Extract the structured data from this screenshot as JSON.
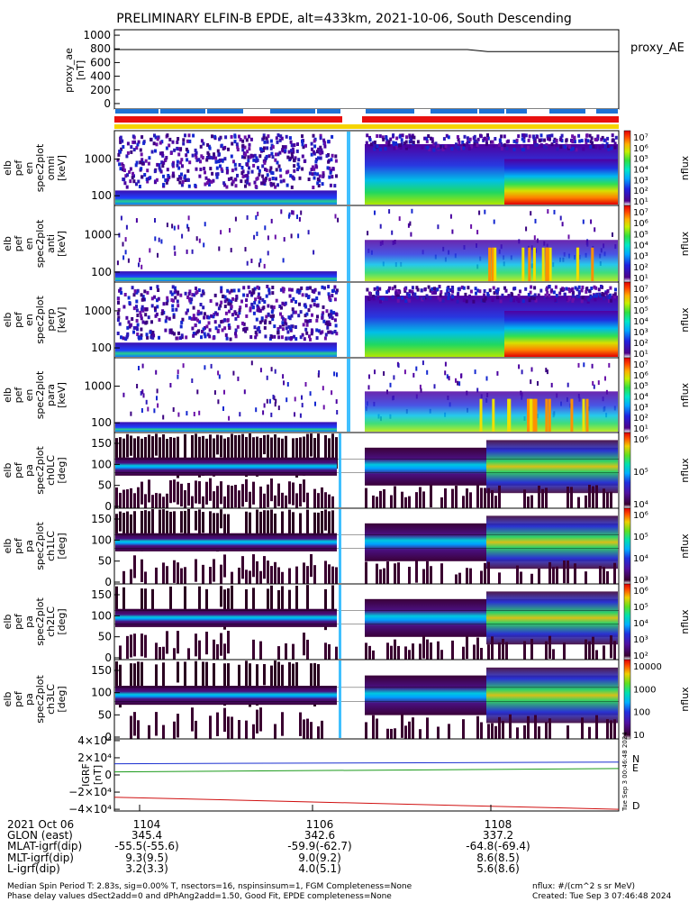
{
  "title": "PRELIMINARY ELFIN-B EPDE, alt=433km, 2021-10-06, South Descending",
  "colors": {
    "bar_blue": "#1e73d6",
    "bar_red": "#e8100f",
    "bar_yellow": "#f5d400",
    "trace_N": "#1a2fd0",
    "trace_E": "#1a9a1a",
    "trace_D": "#d01010"
  },
  "chart_data": [
    {
      "type": "line",
      "panel": "proxy_ae",
      "ylabel_lines": [
        "proxy_ae",
        "[nT]"
      ],
      "y_ticks": [
        "1000",
        "800",
        "600",
        "400",
        "200",
        "0"
      ],
      "ylim": [
        -80,
        1080
      ],
      "legend": "proxy_AE",
      "series": [
        {
          "name": "proxy_AE",
          "x": [
            0,
            0.7,
            0.74,
            1
          ],
          "values": [
            790,
            790,
            760,
            760
          ]
        }
      ]
    },
    {
      "type": "heatmap",
      "panel": "pef_en_spec2plot_omni",
      "ylabel_lines": [
        "elb",
        "pef",
        "en",
        "spec2plot",
        "omni",
        "[keV]"
      ],
      "y_ticks": [
        "1000",
        "100"
      ],
      "colorbar_label": "nflux",
      "colorbar_ticks": [
        "10⁷",
        "10⁶",
        "10⁵",
        "10⁴",
        "10³",
        "10²",
        "10¹"
      ]
    },
    {
      "type": "heatmap",
      "panel": "pef_en_spec2plot_anti",
      "ylabel_lines": [
        "elb",
        "pef",
        "en",
        "spec2plot",
        "anti",
        "[keV]"
      ],
      "y_ticks": [
        "1000",
        "100"
      ],
      "colorbar_label": "nflux",
      "colorbar_ticks": [
        "10⁷",
        "10⁶",
        "10⁵",
        "10⁴",
        "10³",
        "10²",
        "10¹"
      ]
    },
    {
      "type": "heatmap",
      "panel": "pef_en_spec2plot_perp",
      "ylabel_lines": [
        "elb",
        "pef",
        "en",
        "spec2plot",
        "perp",
        "[keV]"
      ],
      "y_ticks": [
        "1000",
        "100"
      ],
      "colorbar_label": "nflux",
      "colorbar_ticks": [
        "10⁷",
        "10⁶",
        "10⁵",
        "10⁴",
        "10³",
        "10²",
        "10¹"
      ]
    },
    {
      "type": "heatmap",
      "panel": "pef_en_spec2plot_para",
      "ylabel_lines": [
        "elb",
        "pef",
        "en",
        "spec2plot",
        "para",
        "[keV]"
      ],
      "y_ticks": [
        "1000",
        "100"
      ],
      "colorbar_label": "nflux",
      "colorbar_ticks": [
        "10⁷",
        "10⁶",
        "10⁵",
        "10⁴",
        "10³",
        "10²",
        "10¹"
      ]
    },
    {
      "type": "heatmap",
      "panel": "pa_spec2plot_ch0LC",
      "ylabel_lines": [
        "elb",
        "pef",
        "pa",
        "spec2plot",
        "ch0LC",
        "[deg]"
      ],
      "y_ticks": [
        "150",
        "100",
        "50",
        "0"
      ],
      "colorbar_label": "nflux",
      "colorbar_ticks": [
        "10⁶",
        "10⁵",
        "10⁴"
      ]
    },
    {
      "type": "heatmap",
      "panel": "pa_spec2plot_ch1LC",
      "ylabel_lines": [
        "elb",
        "pef",
        "pa",
        "spec2plot",
        "ch1LC",
        "[deg]"
      ],
      "y_ticks": [
        "150",
        "100",
        "50",
        "0"
      ],
      "colorbar_label": "nflux",
      "colorbar_ticks": [
        "10⁶",
        "10⁵",
        "10⁴",
        "10³"
      ]
    },
    {
      "type": "heatmap",
      "panel": "pa_spec2plot_ch2LC",
      "ylabel_lines": [
        "elb",
        "pef",
        "pa",
        "spec2plot",
        "ch2LC",
        "[deg]"
      ],
      "y_ticks": [
        "150",
        "100",
        "50",
        "0"
      ],
      "colorbar_label": "nflux",
      "colorbar_ticks": [
        "10⁶",
        "10⁵",
        "10⁴",
        "10³",
        "10²"
      ]
    },
    {
      "type": "heatmap",
      "panel": "pa_spec2plot_ch3LC",
      "ylabel_lines": [
        "elb",
        "pef",
        "pa",
        "spec2plot",
        "ch3LC",
        "[deg]"
      ],
      "y_ticks": [
        "150",
        "100",
        "50",
        "0"
      ],
      "colorbar_label": "nflux",
      "colorbar_ticks": [
        "10000",
        "1000",
        "100",
        "10"
      ]
    },
    {
      "type": "line",
      "panel": "igrf",
      "ylabel_lines": [
        "IGRF",
        "[nT]"
      ],
      "y_ticks": [
        "4×10⁴",
        "2×10⁴",
        "0",
        "−2×10⁴",
        "−4×10⁴"
      ],
      "ylim": [
        -42000,
        42000
      ],
      "series": [
        {
          "name": "N",
          "x": [
            0,
            1
          ],
          "values": [
            13000,
            15000
          ]
        },
        {
          "name": "E",
          "x": [
            0,
            1
          ],
          "values": [
            3500,
            7500
          ]
        },
        {
          "name": "D",
          "x": [
            0,
            1
          ],
          "values": [
            -26000,
            -40000
          ]
        }
      ]
    }
  ],
  "pa_ylabel_lines": [
    "elb",
    "pef",
    "pa",
    "spec2plot",
    "ch0LC",
    "[deg]"
  ],
  "ephem": {
    "rows": [
      {
        "label": "2021 Oct 06",
        "v": [
          "1104",
          "1106",
          "1108"
        ]
      },
      {
        "label": "GLON (east)",
        "v": [
          "345.4",
          "342.6",
          "337.2"
        ]
      },
      {
        "label": "MLAT-igrf(dip)",
        "v": [
          "-55.5(-55.6)",
          "-59.9(-62.7)",
          "-64.8(-69.4)"
        ]
      },
      {
        "label": "MLT-igrf(dip)",
        "v": [
          "9.3(9.5)",
          "9.0(9.2)",
          "8.6(8.5)"
        ]
      },
      {
        "label": "L-igrf(dip)",
        "v": [
          "3.2(3.3)",
          "4.0(5.1)",
          "5.6(8.6)"
        ]
      }
    ]
  },
  "footer": {
    "left1": "Median Spin Period T: 2.83s, sig=0.00% T, nsectors=16, nspinsinsum=1, FGM Completeness=None",
    "left2": "Phase delay values dSect2add=0 and dPhAng2add=1.50, Good Fit, EPDE completeness=None",
    "right1": "nflux: #/(cm^2 s sr MeV)",
    "right2": "Created: Tue Sep  3 07:46:48 2024"
  },
  "stamp": "Tue Sep  3 00:46:48 2024"
}
